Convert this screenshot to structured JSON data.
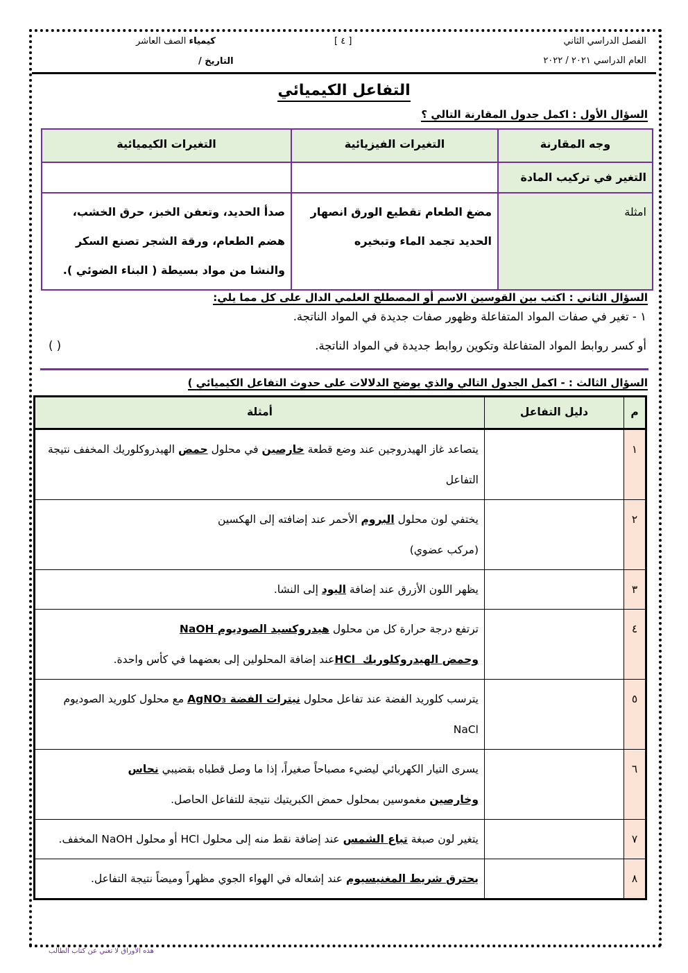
{
  "header": {
    "semester": "الفصل الدراسي الثاني",
    "year": "العام الدراسي  ٢٠٢١ / ٢٠٢٢",
    "page_number": "[ ٤ ]",
    "subject_bold": "كيمياء",
    "subject_rest": " الصف العاشر",
    "date_label": "التاريخ /"
  },
  "title": "التفاعل الكيميائي",
  "q1": {
    "heading": "السؤال الأول : اكمل جدول المقارنة التالي ؟",
    "headers": [
      "وجه المقارنة",
      "التغيرات الفيزيائية",
      "التغيرات الكيميائية"
    ],
    "rows": [
      [
        "التغير في تركيب المادة",
        "",
        ""
      ],
      [
        "امثلة",
        "مضغ الطعام  تقطيع الورق انصهار الحديد تجمد الماء وتبخيره",
        "صدأ الحديد، وتعفن الخبز، حرق الخشب، هضم الطعام، ورقة الشجر تصنع السكر والنشا من مواد بسيطة ( البناء الضوئي )."
      ]
    ]
  },
  "q2": {
    "heading": "السؤال الثاني : اكتب بين القوسين الاسم أو المصطلح العلمي الدال على كل مما يلي:",
    "line1": "١ -  تغير في صفات المواد المتفاعلة وظهور صفات جديدة في المواد الناتجة.",
    "line2": "أو كسر روابط المواد المتفاعلة وتكوين روابط جديدة في المواد الناتجة.",
    "answer_brackets": "(                                                        )"
  },
  "q3": {
    "heading": "السؤال الثالث : - اكمل الجدول التالي والذي يوضح الدلالات على حدوث التفاعل الكيميائي )",
    "headers": [
      "م",
      "دليل التفاعل",
      "أمثلة"
    ],
    "rows": [
      {
        "num": "١",
        "evidence": "",
        "segments": [
          {
            "t": "يتصاعد غاز الهيدروجين عند وضع قطعة "
          },
          {
            "t": "خارصين",
            "b": true
          },
          {
            "t": " في محلول "
          },
          {
            "t": "حمض",
            "b": true
          },
          {
            "t": " الهيدروكلوريك المخفف نتيجة التفاعل"
          }
        ]
      },
      {
        "num": "٢",
        "evidence": "",
        "segments": [
          {
            "t": "يختفي لون محلول "
          },
          {
            "t": "البروم",
            "b": true
          },
          {
            "t": " الأحمر عند إضافته إلى الهكسين "
          },
          {
            "t": "\n(مركب عضوي)"
          }
        ]
      },
      {
        "num": "٣",
        "evidence": "",
        "segments": [
          {
            "t": "يظهر اللون الأزرق عند إضافة "
          },
          {
            "t": "اليود",
            "b": true
          },
          {
            "t": " إلى النشا."
          }
        ]
      },
      {
        "num": "٤",
        "evidence": "",
        "segments": [
          {
            "t": "ترتفع درجة حرارة كل من محلول "
          },
          {
            "t": "هيدروكسيد الصوديوم NaOH",
            "b": true
          },
          {
            "t": "\n"
          },
          {
            "t": "وحمض الهيدروكلوريك  HCl",
            "b": true
          },
          {
            "t": "عند إضافة المحلولين إلى بعضهما في كأس واحدة."
          }
        ]
      },
      {
        "num": "٥",
        "evidence": "",
        "segments": [
          {
            "t": "يترسب كلوريد الفضة عند تفاعل محلول "
          },
          {
            "t": "نيترات الفضة AgNO₃",
            "b": true
          },
          {
            "t": " مع محلول كلوريد الصوديوم NaCl"
          }
        ]
      },
      {
        "num": "٦",
        "evidence": "",
        "segments": [
          {
            "t": "يسرى التيار الكهربائي ليضيء مصباحاً صغيراً، إذا ما وصل قطباه بقضيبي "
          },
          {
            "t": "نحاس",
            "b": true
          },
          {
            "t": "\n"
          },
          {
            "t": "وخارصين",
            "b": true
          },
          {
            "t": " مغموسين بمحلول حمض الكبريتيك نتيجة للتفاعل الحاصل."
          }
        ]
      },
      {
        "num": "٧",
        "evidence": "",
        "segments": [
          {
            "t": "يتغير لون صبغة "
          },
          {
            "t": "تباع الشمس",
            "b": true
          },
          {
            "t": " عند إضافة نقط منه إلى محلول HCl أو محلول NaOH المخفف."
          }
        ]
      },
      {
        "num": "٨",
        "evidence": "",
        "segments": [
          {
            "t": "يحترق شريط المغنيسيوم",
            "b": true
          },
          {
            "t": " عند إشعاله في الهواء الجوي مظهراً وميضاً نتيجة التفاعل."
          }
        ]
      }
    ]
  },
  "footer": "هذه الأوراق لا تغني عن كتاب الطالب",
  "colors": {
    "table_border": "#7030a0",
    "header_fill": "#e2efd9",
    "number_fill": "#fbe4d5"
  }
}
